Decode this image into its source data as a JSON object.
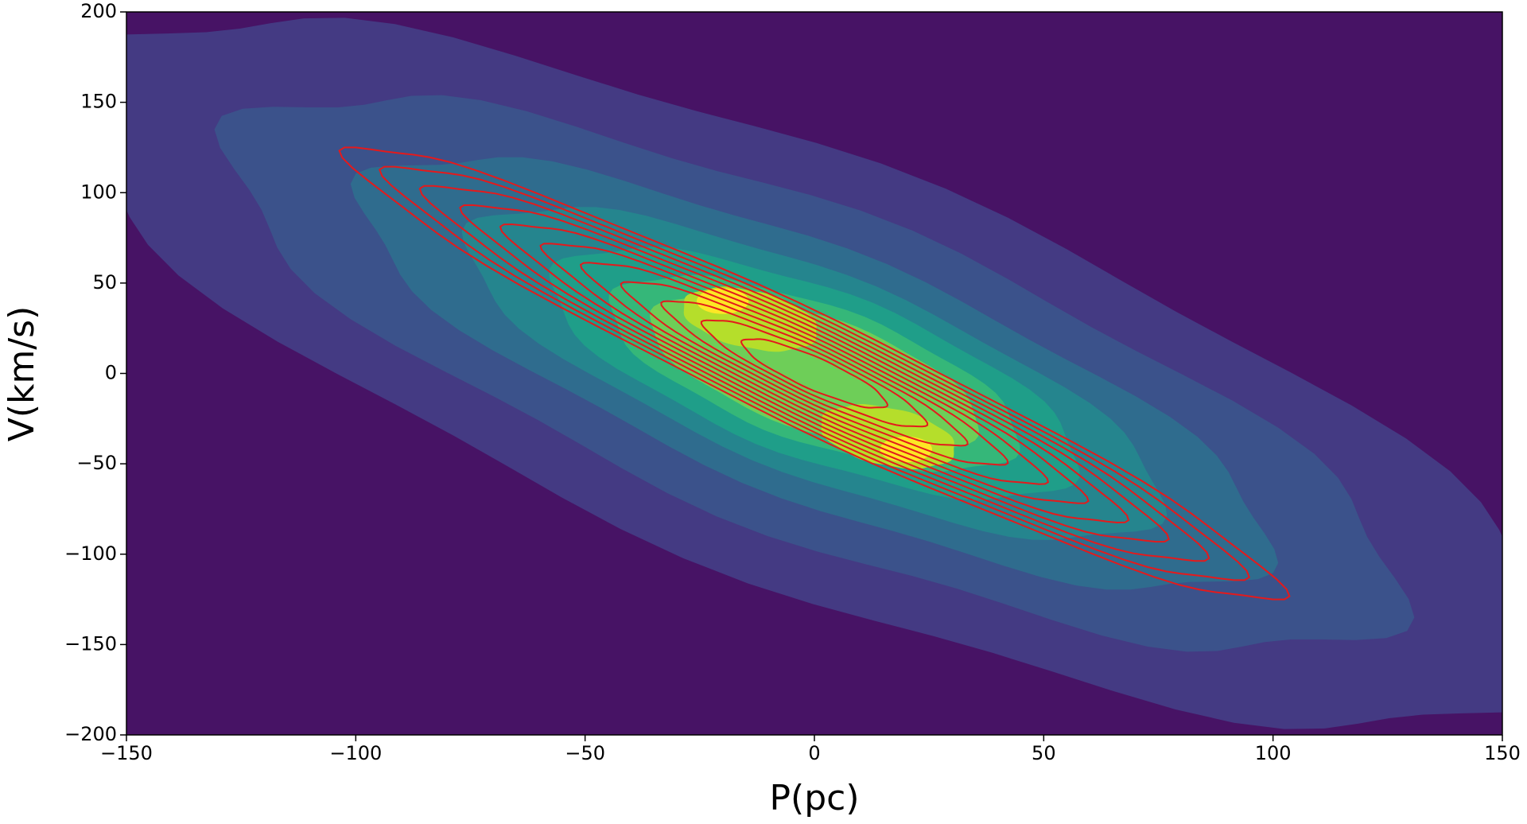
{
  "chart_data": {
    "type": "contour",
    "x_label": "P(pc)",
    "y_label": "V(km/s)",
    "xlim": [
      -150,
      150
    ],
    "ylim": [
      -200,
      200
    ],
    "xticks": [
      {
        "value": -150,
        "label": "−150"
      },
      {
        "value": -100,
        "label": "−100"
      },
      {
        "value": -50,
        "label": "−50"
      },
      0,
      50,
      100,
      150
    ],
    "yticks": [
      {
        "value": -200,
        "label": "−200"
      },
      {
        "value": -150,
        "label": "−150"
      },
      {
        "value": -100,
        "label": "−100"
      },
      {
        "value": -50,
        "label": "−50"
      },
      0,
      50,
      100,
      150,
      200
    ],
    "fill_colors": [
      "#471365",
      "#443a83",
      "#3b528b",
      "#2f6c8e",
      "#25858e",
      "#1f9e89",
      "#35b779",
      "#6ece58",
      "#b5de2b",
      "#fde725"
    ],
    "line_color": "#e41a1c"
  }
}
